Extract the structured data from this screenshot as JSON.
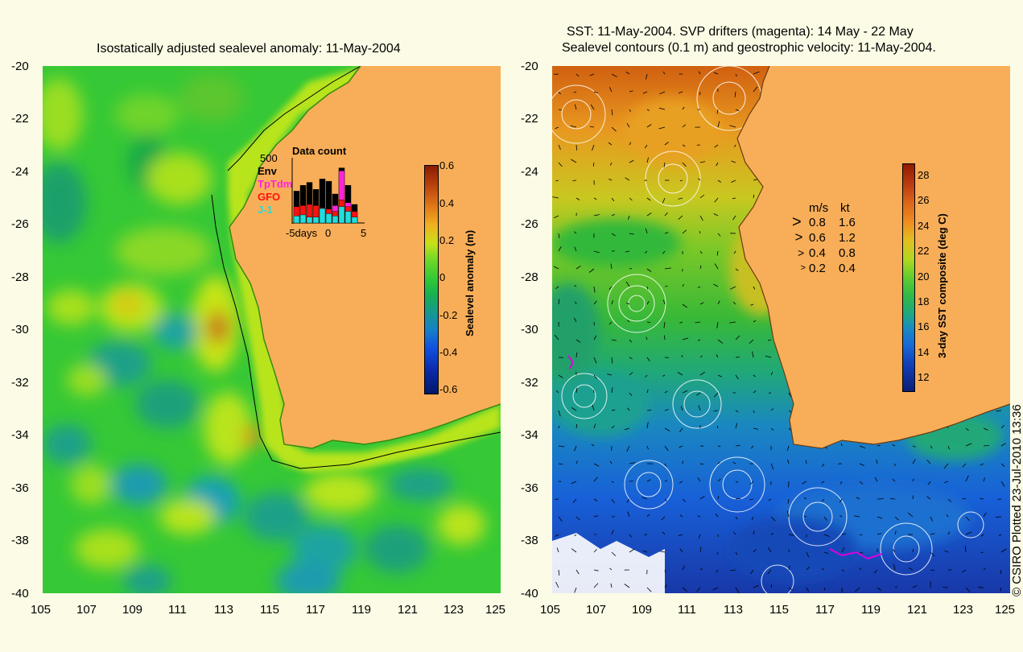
{
  "left_map": {
    "title": "Isostatically adjusted sealevel anomaly: 11-May-2004",
    "lat_ticks": [
      "-20",
      "-22",
      "-24",
      "-26",
      "-28",
      "-30",
      "-32",
      "-34",
      "-36",
      "-38",
      "-40"
    ],
    "lon_ticks": [
      "105",
      "107",
      "109",
      "111",
      "113",
      "115",
      "117",
      "119",
      "121",
      "123",
      "125"
    ],
    "colorbar": {
      "label": "Sealevel anomaly (m)",
      "ticks": [
        "0.6",
        "0.4",
        "0.2",
        "0",
        "-0.2",
        "-0.4",
        "-0.6"
      ],
      "range": [
        -0.6,
        0.6
      ]
    },
    "data_count": {
      "title": "Data count",
      "max_label": "500",
      "legend": [
        {
          "name": "Env",
          "color": "#000000"
        },
        {
          "name": "TpTdm",
          "color": "#ff22dd"
        },
        {
          "name": "GFO",
          "color": "#ff1111"
        },
        {
          "name": "J-1",
          "color": "#22dddd"
        }
      ],
      "x_labels": [
        "-5days",
        "0",
        "5"
      ],
      "bars": [
        {
          "env": 0.55,
          "tp": 0.0,
          "gfo": 0.28,
          "j1": 0.12
        },
        {
          "env": 0.65,
          "tp": 0.0,
          "gfo": 0.3,
          "j1": 0.14
        },
        {
          "env": 0.7,
          "tp": 0.0,
          "gfo": 0.32,
          "j1": 0.1
        },
        {
          "env": 0.58,
          "tp": 0.0,
          "gfo": 0.3,
          "j1": 0.1
        },
        {
          "env": 0.76,
          "tp": 0.0,
          "gfo": 0.26,
          "j1": 0.25
        },
        {
          "env": 0.72,
          "tp": 0.0,
          "gfo": 0.24,
          "j1": 0.16
        },
        {
          "env": 0.5,
          "tp": 0.3,
          "gfo": 0.2,
          "j1": 0.12
        },
        {
          "env": 0.95,
          "tp": 0.9,
          "gfo": 0.4,
          "j1": 0.28
        },
        {
          "env": 0.65,
          "tp": 0.35,
          "gfo": 0.28,
          "j1": 0.2
        },
        {
          "env": 0.32,
          "tp": 0.0,
          "gfo": 0.2,
          "j1": 0.1
        }
      ]
    }
  },
  "right_map": {
    "title_line1": "SST: 11-May-2004. SVP drifters (magenta): 14 May - 22 May",
    "title_line2": "Sealevel contours (0.1 m) and geostrophic velocity: 11-May-2004.",
    "lat_ticks": [
      "-20",
      "-22",
      "-24",
      "-26",
      "-28",
      "-30",
      "-32",
      "-34",
      "-36",
      "-38",
      "-40"
    ],
    "lon_ticks": [
      "105",
      "107",
      "109",
      "111",
      "113",
      "115",
      "117",
      "119",
      "121",
      "123",
      "125"
    ],
    "colorbar": {
      "label": "3-day SST composite (deg C)",
      "ticks": [
        "28",
        "26",
        "24",
        "22",
        "20",
        "18",
        "16",
        "14",
        "12"
      ],
      "range": [
        11,
        29
      ]
    },
    "velocity_legend": {
      "header_ms": "m/s",
      "header_kt": "kt",
      "rows": [
        {
          "ms": "0.8",
          "kt": "1.6",
          "scale": 1.0
        },
        {
          "ms": "0.6",
          "kt": "1.2",
          "scale": 0.75
        },
        {
          "ms": "0.4",
          "kt": "0.8",
          "scale": 0.5
        },
        {
          "ms": "0.2",
          "kt": "0.4",
          "scale": 0.25
        }
      ]
    }
  },
  "credit": "© CSIRO Plotted 23-Jul-2010 13:36",
  "colors": {
    "land": "#f8ae58",
    "background": "#fcfce6",
    "drifter": "#dd00dd"
  }
}
